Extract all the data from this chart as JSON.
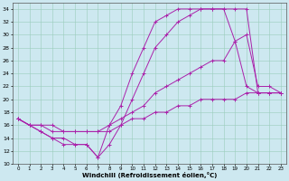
{
  "xlabel": "Windchill (Refroidissement éolien,°C)",
  "xlim": [
    -0.5,
    23.5
  ],
  "ylim": [
    10,
    35
  ],
  "xticks": [
    0,
    1,
    2,
    3,
    4,
    5,
    6,
    7,
    8,
    9,
    10,
    11,
    12,
    13,
    14,
    15,
    16,
    17,
    18,
    19,
    20,
    21,
    22,
    23
  ],
  "yticks": [
    10,
    12,
    14,
    16,
    18,
    20,
    22,
    24,
    26,
    28,
    30,
    32,
    34
  ],
  "background_color": "#cde8f0",
  "line_color": "#aa22aa",
  "grid_color": "#99ccbb",
  "lines": [
    {
      "x": [
        0,
        1,
        2,
        3,
        4,
        5,
        6,
        7,
        8,
        9,
        10,
        11,
        12,
        13,
        14,
        15,
        16,
        17,
        18,
        19,
        20,
        21,
        22,
        23
      ],
      "y": [
        17,
        16,
        15,
        14,
        14,
        13,
        13,
        11,
        13,
        16,
        20,
        24,
        28,
        30,
        32,
        33,
        34,
        34,
        34,
        34,
        34,
        21,
        21,
        21
      ]
    },
    {
      "x": [
        0,
        1,
        2,
        3,
        4,
        5,
        6,
        7,
        8,
        9,
        10,
        11,
        12,
        13,
        14,
        15,
        16,
        17,
        18,
        19,
        20,
        21,
        22,
        23
      ],
      "y": [
        17,
        16,
        15,
        14,
        13,
        13,
        13,
        11,
        16,
        19,
        24,
        28,
        32,
        33,
        34,
        34,
        34,
        34,
        34,
        29,
        22,
        21,
        21,
        21
      ]
    },
    {
      "x": [
        0,
        1,
        2,
        3,
        4,
        5,
        6,
        7,
        8,
        9,
        10,
        11,
        12,
        13,
        14,
        15,
        16,
        17,
        18,
        19,
        20,
        21,
        22,
        23
      ],
      "y": [
        17,
        16,
        16,
        15,
        15,
        15,
        15,
        15,
        15,
        16,
        17,
        17,
        18,
        18,
        19,
        19,
        20,
        20,
        20,
        20,
        21,
        21,
        21,
        21
      ]
    },
    {
      "x": [
        0,
        1,
        2,
        3,
        4,
        5,
        6,
        7,
        8,
        9,
        10,
        11,
        12,
        13,
        14,
        15,
        16,
        17,
        18,
        19,
        20,
        21,
        22,
        23
      ],
      "y": [
        17,
        16,
        16,
        16,
        15,
        15,
        15,
        15,
        16,
        17,
        18,
        19,
        21,
        22,
        23,
        24,
        25,
        26,
        26,
        29,
        30,
        22,
        22,
        21
      ]
    }
  ]
}
